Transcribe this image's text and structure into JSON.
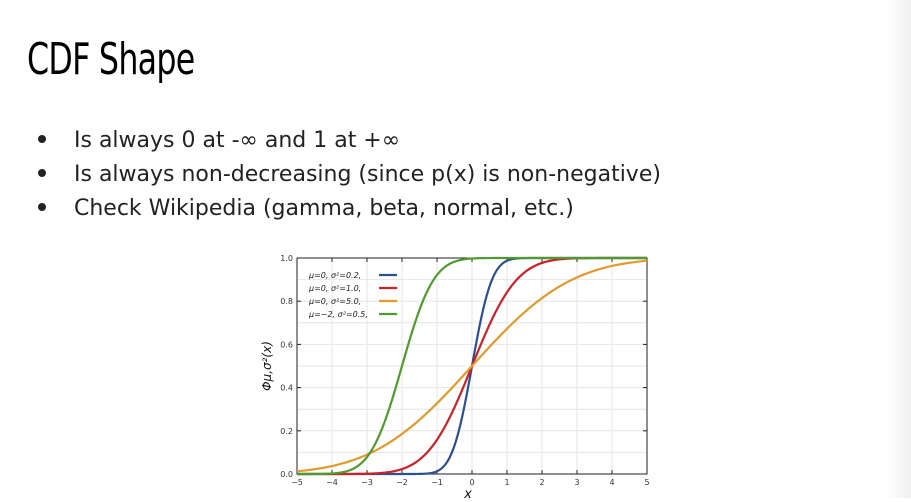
{
  "slide": {
    "title": "CDF Shape",
    "bullets": [
      "Is always 0 at -∞ and 1 at +∞",
      "Is always non-decreasing (since p(x) is non-negative)",
      "Check Wikipedia (gamma, beta, normal, etc.)"
    ]
  },
  "chart_data": {
    "type": "line",
    "title": "",
    "xlabel": "x",
    "ylabel": "Φμ,σ²(x)",
    "xlim": [
      -5,
      5
    ],
    "ylim": [
      0,
      1
    ],
    "x_ticks": [
      "−5",
      "−4",
      "−3",
      "−2",
      "−1",
      "0",
      "1",
      "2",
      "3",
      "4",
      "5"
    ],
    "y_ticks": [
      "0.0",
      "0.2",
      "0.4",
      "0.6",
      "0.8",
      "1.0"
    ],
    "grid": true,
    "legend_position": "top-left",
    "series": [
      {
        "name": "μ=0,    σ²=0.2,",
        "mu": 0,
        "variance": 0.2,
        "color": "#2b4f91"
      },
      {
        "name": "μ=0,    σ²=1.0,",
        "mu": 0,
        "variance": 1.0,
        "color": "#cc2127"
      },
      {
        "name": "μ=0,    σ²=5.0,",
        "mu": 0,
        "variance": 5.0,
        "color": "#e19a2b"
      },
      {
        "name": "μ=−2, σ²=0.5,",
        "mu": -2,
        "variance": 0.5,
        "color": "#4f9a2e"
      }
    ]
  }
}
